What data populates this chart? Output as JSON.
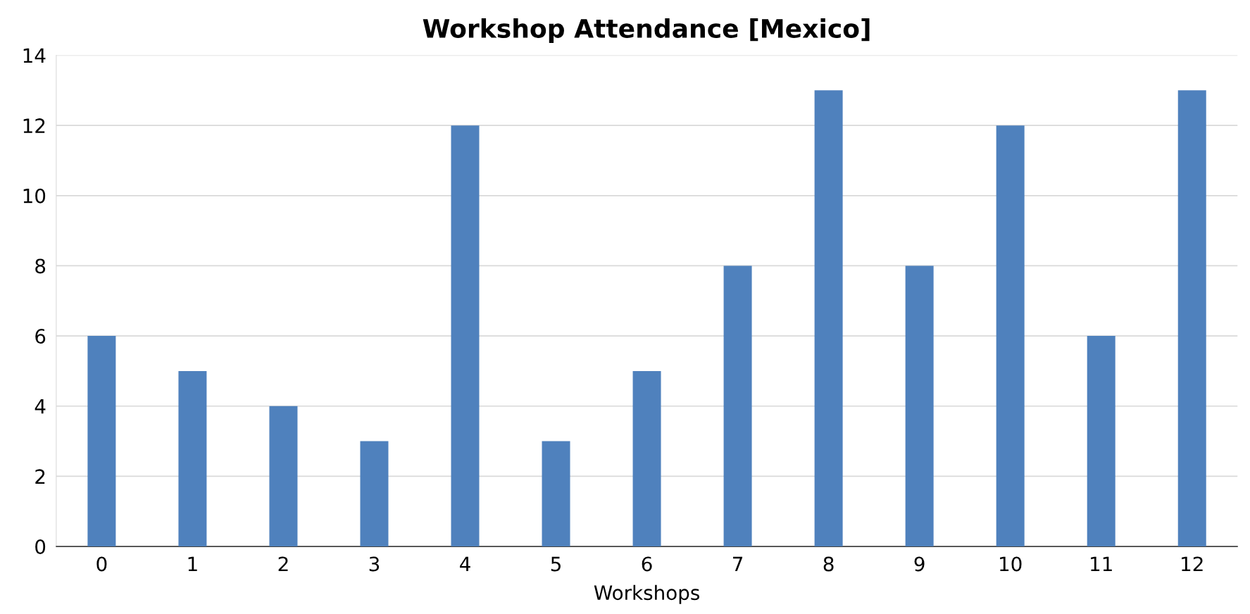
{
  "chart_data": {
    "type": "bar",
    "title": "Workshop Attendance [Mexico]",
    "xlabel": "Workshops",
    "categories": [
      "0",
      "1",
      "2",
      "3",
      "4",
      "5",
      "6",
      "7",
      "8",
      "9",
      "10",
      "11",
      "12"
    ],
    "values": [
      6,
      5,
      4,
      3,
      12,
      3,
      5,
      8,
      13,
      8,
      12,
      6,
      13
    ],
    "color": "#4f81bd",
    "ylim": [
      0,
      14
    ],
    "yticks": [
      0,
      2,
      4,
      6,
      8,
      10,
      12,
      14
    ],
    "grid": "y",
    "legend": false
  }
}
